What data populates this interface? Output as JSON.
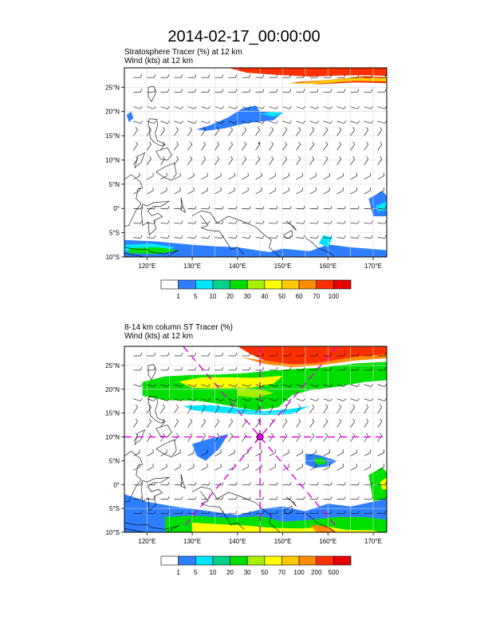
{
  "page": {
    "title": "2014-02-17_00:00:00"
  },
  "maps": [
    {
      "subtitle_line1": "Stratosphere Tracer   (%)     at   12 km",
      "subtitle_line2": "Wind    (kts)      at   12 km",
      "lat_labels": [
        "25°N",
        "20°N",
        "15°N",
        "10°N",
        "5°N",
        "0°",
        "5°S",
        "10°S"
      ],
      "lon_labels": [
        "120°E",
        "130°E",
        "140°E",
        "150°E",
        "160°E",
        "170°E"
      ],
      "colorbar": {
        "labels": [
          "1",
          "5",
          "10",
          "20",
          "30",
          "40",
          "50",
          "60",
          "70",
          "100"
        ],
        "colors": [
          "#ffffff",
          "#2e7fff",
          "#00e5ff",
          "#00d28c",
          "#00e000",
          "#a6f000",
          "#ffff00",
          "#ffc800",
          "#ff8c00",
          "#ff3000",
          "#e60000"
        ]
      },
      "has_cross_section_lines": false
    },
    {
      "subtitle_line1": "8-14 km column ST Tracer    (%)",
      "subtitle_line2": "Wind    (kts)      at   12 km",
      "lat_labels": [
        "25°N",
        "20°N",
        "15°N",
        "10°N",
        "5°N",
        "0°",
        "5°S",
        "10°S"
      ],
      "lon_labels": [
        "120°E",
        "130°E",
        "140°E",
        "150°E",
        "160°E",
        "170°E"
      ],
      "colorbar": {
        "labels": [
          "1",
          "5",
          "10",
          "20",
          "30",
          "50",
          "70",
          "100",
          "200",
          "500"
        ],
        "colors": [
          "#ffffff",
          "#2e7fff",
          "#00e5ff",
          "#00d28c",
          "#00e000",
          "#a6f000",
          "#ffff00",
          "#ffc800",
          "#ff8c00",
          "#ff3000",
          "#e60000"
        ]
      },
      "has_cross_section_lines": true,
      "cross_line_color": "#e000e0"
    }
  ]
}
